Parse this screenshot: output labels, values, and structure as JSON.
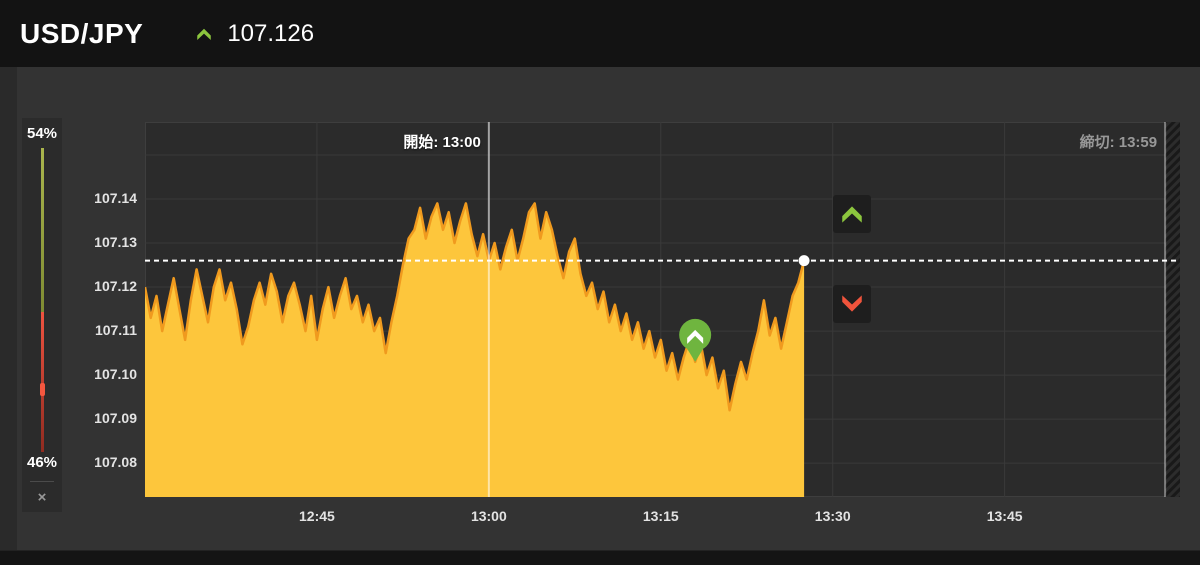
{
  "header": {
    "pair": "USD/JPY",
    "price": "107.126",
    "trend": "up"
  },
  "gauge": {
    "high_percent": "54%",
    "low_percent": "46%",
    "close_label": "×"
  },
  "colors": {
    "accent_green": "#8cc63e",
    "accent_red": "#f0543c",
    "area_fill": "#fdc63c",
    "area_stroke": "#f09a1e",
    "grid": "#3a3a3a",
    "plot_bg": "#2b2b2b",
    "dotted_line": "#ffffff",
    "start_line": "rgba(255,255,255,0.55)",
    "deadline_line": "rgba(255,255,255,0.40)",
    "pin_green": "#6fb53f",
    "gauge_green": "#97a23d",
    "gauge_red": "#d84a35"
  },
  "chart_data": {
    "type": "area",
    "title": "USD/JPY intraday price",
    "x_ticks": [
      "12:45",
      "13:00",
      "13:15",
      "13:30",
      "13:45"
    ],
    "x_tick_minutes": [
      765,
      780,
      795,
      810,
      825
    ],
    "y_ticks": [
      "107.14",
      "107.13",
      "107.12",
      "107.11",
      "107.10",
      "107.09",
      "107.08"
    ],
    "y_tick_values": [
      107.14,
      107.13,
      107.12,
      107.11,
      107.1,
      107.09,
      107.08
    ],
    "y_grid_values": [
      107.15,
      107.14,
      107.13,
      107.12,
      107.11,
      107.1,
      107.09,
      107.08
    ],
    "xlim_minutes": [
      750,
      840.3
    ],
    "ylim": [
      107.0723,
      107.1575
    ],
    "grid": true,
    "start_line": {
      "label": "開始: 13:00",
      "minute": 780
    },
    "deadline_line": {
      "label": "締切: 13:59",
      "minute": 839
    },
    "current_price": 107.126,
    "entry_marker": {
      "minute": 798,
      "value": 107.103,
      "direction": "high"
    },
    "series": [
      {
        "name": "USD/JPY",
        "points": [
          [
            750.0,
            107.12
          ],
          [
            750.5,
            107.113
          ],
          [
            751.0,
            107.118
          ],
          [
            751.5,
            107.11
          ],
          [
            752.0,
            107.116
          ],
          [
            752.5,
            107.122
          ],
          [
            753.0,
            107.115
          ],
          [
            753.5,
            107.108
          ],
          [
            754.0,
            107.117
          ],
          [
            754.5,
            107.124
          ],
          [
            755.0,
            107.118
          ],
          [
            755.5,
            107.112
          ],
          [
            756.0,
            107.12
          ],
          [
            756.5,
            107.124
          ],
          [
            757.0,
            107.117
          ],
          [
            757.5,
            107.121
          ],
          [
            758.0,
            107.115
          ],
          [
            758.5,
            107.107
          ],
          [
            759.0,
            107.111
          ],
          [
            759.5,
            107.117
          ],
          [
            760.0,
            107.121
          ],
          [
            760.5,
            107.116
          ],
          [
            761.0,
            107.123
          ],
          [
            761.5,
            107.119
          ],
          [
            762.0,
            107.112
          ],
          [
            762.5,
            107.118
          ],
          [
            763.0,
            107.121
          ],
          [
            763.5,
            107.116
          ],
          [
            764.0,
            107.11
          ],
          [
            764.5,
            107.118
          ],
          [
            765.0,
            107.108
          ],
          [
            765.5,
            107.115
          ],
          [
            766.0,
            107.12
          ],
          [
            766.5,
            107.113
          ],
          [
            767.0,
            107.118
          ],
          [
            767.5,
            107.122
          ],
          [
            768.0,
            107.115
          ],
          [
            768.5,
            107.118
          ],
          [
            769.0,
            107.112
          ],
          [
            769.5,
            107.116
          ],
          [
            770.0,
            107.11
          ],
          [
            770.5,
            107.113
          ],
          [
            771.0,
            107.105
          ],
          [
            771.5,
            107.112
          ],
          [
            772.0,
            107.118
          ],
          [
            772.5,
            107.125
          ],
          [
            773.0,
            107.131
          ],
          [
            773.5,
            107.133
          ],
          [
            774.0,
            107.138
          ],
          [
            774.5,
            107.131
          ],
          [
            775.0,
            107.136
          ],
          [
            775.5,
            107.139
          ],
          [
            776.0,
            107.133
          ],
          [
            776.5,
            107.137
          ],
          [
            777.0,
            107.13
          ],
          [
            777.5,
            107.135
          ],
          [
            778.0,
            107.139
          ],
          [
            778.5,
            107.132
          ],
          [
            779.0,
            107.127
          ],
          [
            779.5,
            107.132
          ],
          [
            780.0,
            107.126
          ],
          [
            780.5,
            107.13
          ],
          [
            781.0,
            107.124
          ],
          [
            781.5,
            107.129
          ],
          [
            782.0,
            107.133
          ],
          [
            782.5,
            107.126
          ],
          [
            783.0,
            107.131
          ],
          [
            783.5,
            107.137
          ],
          [
            784.0,
            107.139
          ],
          [
            784.5,
            107.131
          ],
          [
            785.0,
            107.137
          ],
          [
            785.5,
            107.133
          ],
          [
            786.0,
            107.127
          ],
          [
            786.5,
            107.122
          ],
          [
            787.0,
            107.128
          ],
          [
            787.5,
            107.131
          ],
          [
            788.0,
            107.123
          ],
          [
            788.5,
            107.118
          ],
          [
            789.0,
            107.121
          ],
          [
            789.5,
            107.115
          ],
          [
            790.0,
            107.119
          ],
          [
            790.5,
            107.112
          ],
          [
            791.0,
            107.116
          ],
          [
            791.5,
            107.11
          ],
          [
            792.0,
            107.114
          ],
          [
            792.5,
            107.108
          ],
          [
            793.0,
            107.112
          ],
          [
            793.5,
            107.106
          ],
          [
            794.0,
            107.11
          ],
          [
            794.5,
            107.104
          ],
          [
            795.0,
            107.108
          ],
          [
            795.5,
            107.101
          ],
          [
            796.0,
            107.105
          ],
          [
            796.5,
            107.099
          ],
          [
            797.0,
            107.104
          ],
          [
            797.5,
            107.108
          ],
          [
            798.0,
            107.103
          ],
          [
            798.5,
            107.107
          ],
          [
            799.0,
            107.1
          ],
          [
            799.5,
            107.104
          ],
          [
            800.0,
            107.097
          ],
          [
            800.5,
            107.101
          ],
          [
            801.0,
            107.092
          ],
          [
            801.5,
            107.098
          ],
          [
            802.0,
            107.103
          ],
          [
            802.5,
            107.099
          ],
          [
            803.0,
            107.105
          ],
          [
            803.5,
            107.11
          ],
          [
            804.0,
            107.117
          ],
          [
            804.5,
            107.109
          ],
          [
            805.0,
            107.113
          ],
          [
            805.5,
            107.106
          ],
          [
            806.0,
            107.112
          ],
          [
            806.5,
            107.118
          ],
          [
            807.0,
            107.121
          ],
          [
            807.5,
            107.126
          ]
        ]
      }
    ]
  }
}
